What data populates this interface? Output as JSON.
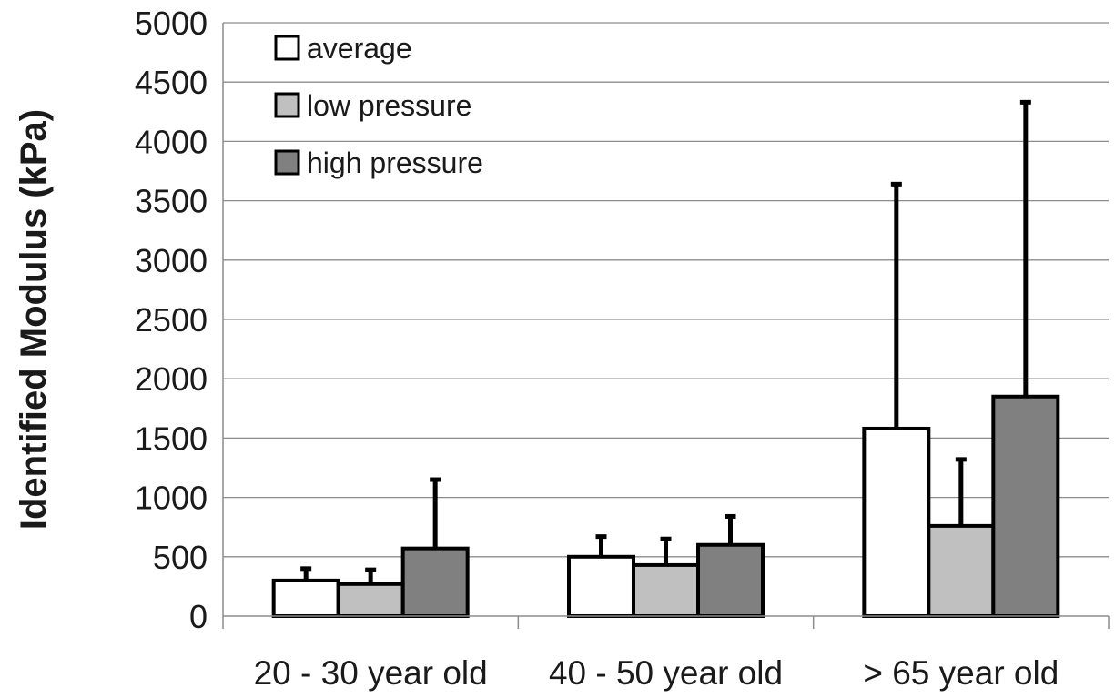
{
  "chart_data": {
    "type": "bar",
    "title": "",
    "xlabel": "",
    "ylabel": "Identified Modulus (kPa)",
    "ylim": [
      0,
      5000
    ],
    "ytick_step": 500,
    "grid": true,
    "legend_position": "top-left",
    "categories": [
      "20 - 30 year old",
      "40 - 50 year old",
      "> 65 year old"
    ],
    "series": [
      {
        "name": "average",
        "color": "#ffffff",
        "values": [
          300,
          500,
          1580
        ],
        "error_upper": [
          400,
          670,
          3640
        ]
      },
      {
        "name": "low pressure",
        "color": "#c0c0c0",
        "values": [
          270,
          430,
          760
        ],
        "error_upper": [
          390,
          650,
          1320
        ]
      },
      {
        "name": "high pressure",
        "color": "#808080",
        "values": [
          570,
          600,
          1850
        ],
        "error_upper": [
          1150,
          840,
          4330
        ]
      }
    ]
  }
}
